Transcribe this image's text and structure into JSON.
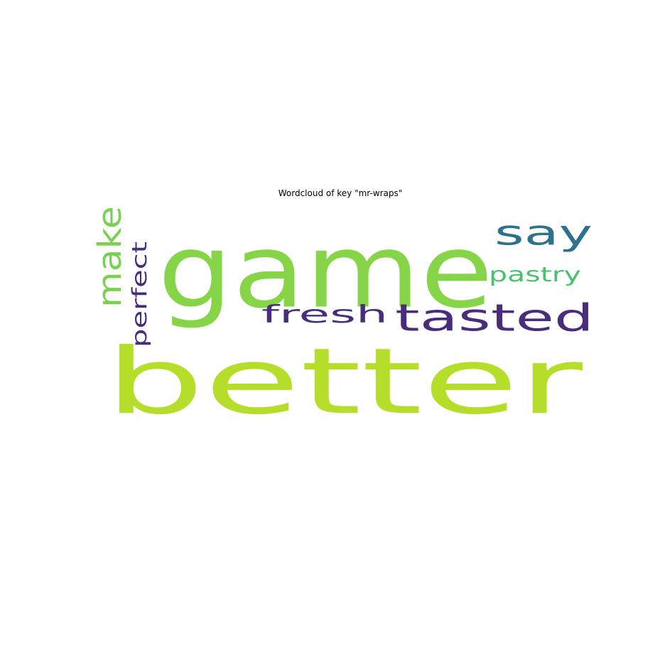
{
  "chart_data": {
    "type": "wordcloud",
    "title": "Wordcloud of key \"mr-wraps\"",
    "words": [
      {
        "text": "better",
        "color": "#b5de2b",
        "orientation": "horizontal"
      },
      {
        "text": "game",
        "color": "#86d549",
        "orientation": "horizontal"
      },
      {
        "text": "tasted",
        "color": "#472d7b",
        "orientation": "horizontal"
      },
      {
        "text": "fresh",
        "color": "#472d7b",
        "orientation": "horizontal"
      },
      {
        "text": "say",
        "color": "#2c728e",
        "orientation": "horizontal"
      },
      {
        "text": "make",
        "color": "#7ad151",
        "orientation": "vertical"
      },
      {
        "text": "pastry",
        "color": "#4ac16d",
        "orientation": "horizontal"
      },
      {
        "text": "perfect",
        "color": "#472d7b",
        "orientation": "vertical"
      }
    ]
  }
}
